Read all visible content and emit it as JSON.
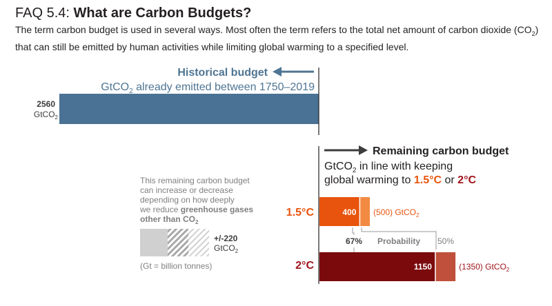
{
  "header": {
    "faq_label": "FAQ 5.4:",
    "title": "What are Carbon Budgets?",
    "intro_pre": "The term carbon budget is used in several ways. Most often the term refers to the total net amount of carbon dioxide (CO",
    "intro_sub": "2",
    "intro_post": ") that can still be emitted by human activities while limiting global warming to a specified level."
  },
  "colors": {
    "historical": "#4a7294",
    "historical_text": "#4e7593",
    "orange": "#e8540d",
    "orange_light": "#f28a42",
    "orange_text": "#e8540d",
    "red": "#7b0a0c",
    "red_light": "#c0503b",
    "red_text": "#a0141a",
    "gray": "#d0d0d0",
    "gray_text": "#7f7f7f",
    "dark_text": "#3c3c3c"
  },
  "historical": {
    "title": "Historical budget",
    "subtitle_pre": "GtCO",
    "subtitle_sub": "2",
    "subtitle_post": " already emitted between 1750–2019",
    "value_label": "2560",
    "unit_pre": "GtCO",
    "unit_sub": "2"
  },
  "remaining": {
    "title": "Remaining carbon budget",
    "line1_pre": "GtCO",
    "line1_sub": "2",
    "line1_post": " in line with keeping",
    "line2_pre": "global warming to ",
    "line2_a": "1.5°C",
    "line2_or": " or ",
    "line2_b": "2°C"
  },
  "side_note": {
    "line1": "This remaining carbon budget",
    "line2": "can increase or decrease",
    "line3": "depending on how deeply",
    "line4_pre": "we reduce ",
    "line4_bold": "greenhouse gases",
    "line5_bold": "other than CO",
    "line5_sub": "2",
    "range_label": "+/-220",
    "range_unit_pre": "GtCO",
    "range_unit_sub": "2",
    "footnote": "(Gt = billion tonnes)"
  },
  "probability": {
    "label": "Probability",
    "p67": "67%",
    "p50": "50%"
  },
  "chart_data": {
    "type": "bar",
    "unit": "GtCO2",
    "series": [
      {
        "name": "Historical budget",
        "category": "",
        "value": 2560
      },
      {
        "name": "1.5°C",
        "category": "1.5°C",
        "value_67": 400,
        "value_50": 500
      },
      {
        "name": "2°C",
        "category": "2°C",
        "value_67": 1150,
        "value_50": 1350
      }
    ],
    "labels": {
      "hist_value": "2560",
      "c15_label": "1.5°C",
      "c15_value": "400",
      "c15_alt": "(500) GtCO",
      "c15_alt_sub": "2",
      "c2_label": "2°C",
      "c2_value": "1150",
      "c2_alt": "(1350) GtCO",
      "c2_alt_sub": "2"
    },
    "uncertainty": 220
  }
}
